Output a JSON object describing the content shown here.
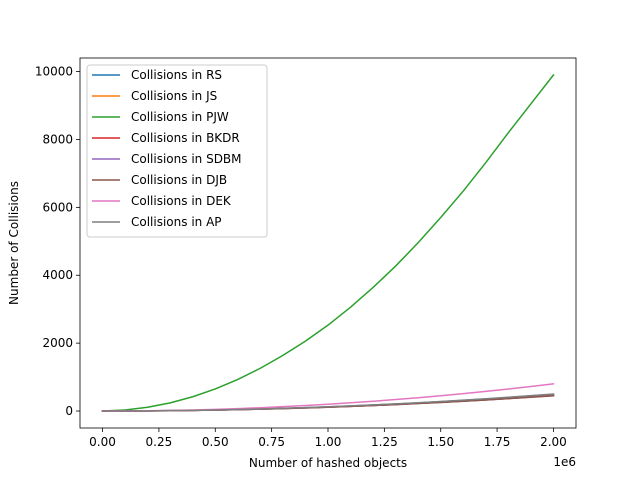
{
  "chart_data": {
    "type": "line",
    "title": "",
    "xlabel": "Number of hashed objects",
    "ylabel": "Number of Collisions",
    "x_offset_text": "1e6",
    "xlim": [
      -0.1,
      2.1
    ],
    "ylim": [
      -500,
      10400
    ],
    "x_ticks": [
      0.0,
      0.25,
      0.5,
      0.75,
      1.0,
      1.25,
      1.5,
      1.75,
      2.0
    ],
    "x_tick_labels": [
      "0.00",
      "0.25",
      "0.50",
      "0.75",
      "1.00",
      "1.25",
      "1.50",
      "1.75",
      "2.00"
    ],
    "y_ticks": [
      0,
      2000,
      4000,
      6000,
      8000,
      10000
    ],
    "y_tick_labels": [
      "0",
      "2000",
      "4000",
      "6000",
      "8000",
      "10000"
    ],
    "grid": false,
    "legend_position": "top-left",
    "x": [
      0.0,
      0.1,
      0.2,
      0.3,
      0.4,
      0.5,
      0.6,
      0.7,
      0.8,
      0.9,
      1.0,
      1.1,
      1.2,
      1.3,
      1.4,
      1.5,
      1.6,
      1.7,
      1.8,
      1.9,
      2.0
    ],
    "series": [
      {
        "name": "Collisions in RS",
        "color": "#1f77b4",
        "values": [
          0,
          1,
          5,
          11,
          20,
          31,
          44,
          60,
          79,
          100,
          123,
          149,
          177,
          208,
          241,
          277,
          315,
          356,
          399,
          445,
          493
        ]
      },
      {
        "name": "Collisions in JS",
        "color": "#ff7f0e",
        "values": [
          0,
          1,
          4,
          10,
          18,
          29,
          42,
          57,
          75,
          95,
          117,
          142,
          169,
          198,
          230,
          264,
          300,
          339,
          380,
          424,
          470
        ]
      },
      {
        "name": "Collisions in PJW",
        "color": "#2ca02c",
        "values": [
          0,
          30,
          110,
          240,
          420,
          650,
          930,
          1260,
          1640,
          2060,
          2530,
          3060,
          3640,
          4270,
          4960,
          5700,
          6480,
          7320,
          8200,
          9050,
          9900
        ]
      },
      {
        "name": "Collisions in BKDR",
        "color": "#d62728",
        "values": [
          0,
          1,
          4,
          10,
          18,
          28,
          41,
          56,
          73,
          92,
          114,
          138,
          164,
          193,
          224,
          257,
          292,
          330,
          370,
          412,
          457
        ]
      },
      {
        "name": "Collisions in SDBM",
        "color": "#9467bd",
        "values": [
          0,
          1,
          4,
          10,
          18,
          28,
          41,
          56,
          73,
          92,
          114,
          138,
          164,
          193,
          224,
          257,
          292,
          330,
          370,
          412,
          457
        ]
      },
      {
        "name": "Collisions in DJB",
        "color": "#8c564b",
        "values": [
          0,
          1,
          4,
          10,
          18,
          28,
          40,
          55,
          72,
          91,
          112,
          136,
          162,
          190,
          220,
          253,
          288,
          325,
          364,
          406,
          450
        ]
      },
      {
        "name": "Collisions in DEK",
        "color": "#e377c2",
        "values": [
          0,
          2,
          8,
          18,
          32,
          50,
          72,
          98,
          128,
          162,
          200,
          242,
          288,
          338,
          392,
          450,
          512,
          578,
          648,
          722,
          800
        ]
      },
      {
        "name": "Collisions in AP",
        "color": "#7f7f7f",
        "values": [
          0,
          1,
          5,
          11,
          20,
          31,
          45,
          61,
          80,
          101,
          125,
          151,
          180,
          211,
          245,
          281,
          320,
          361,
          405,
          452,
          500
        ]
      }
    ]
  }
}
